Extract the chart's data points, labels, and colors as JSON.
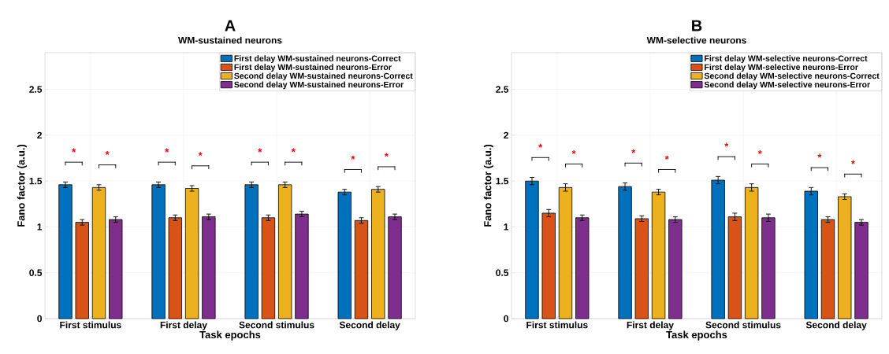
{
  "chart_data": [
    {
      "type": "bar",
      "title": "A",
      "subtitle": "WM-sustained neurons",
      "xlabel": "Task epochs",
      "ylabel": "Fano factor (a.u.)",
      "categories": [
        "First stimulus",
        "First delay",
        "Second stimulus",
        "Second delay"
      ],
      "series": [
        {
          "name": "First delay WM-sustained neurons-Correct",
          "color": "#0072bd",
          "values": [
            1.46,
            1.46,
            1.46,
            1.38
          ],
          "errors": [
            0.03,
            0.03,
            0.03,
            0.03
          ]
        },
        {
          "name": "First delay WM-sustained neurons-Error",
          "color": "#d95319",
          "values": [
            1.05,
            1.1,
            1.1,
            1.07
          ],
          "errors": [
            0.03,
            0.03,
            0.03,
            0.03
          ]
        },
        {
          "name": "Second delay WM-sustained neurons-Correct",
          "color": "#edb120",
          "values": [
            1.43,
            1.42,
            1.46,
            1.41
          ],
          "errors": [
            0.03,
            0.03,
            0.03,
            0.03
          ]
        },
        {
          "name": "Second delay WM-sustained neurons-Error",
          "color": "#7e2f8e",
          "values": [
            1.08,
            1.11,
            1.14,
            1.11
          ],
          "errors": [
            0.03,
            0.03,
            0.03,
            0.03
          ]
        }
      ],
      "ylim": [
        0,
        2.9
      ],
      "yticks": [
        0,
        0.5,
        1,
        1.5,
        2,
        2.5
      ],
      "grid": true,
      "legend": "top right",
      "annotations": [
        "*",
        "*",
        "*",
        "*",
        "*",
        "*",
        "*",
        "*"
      ]
    },
    {
      "type": "bar",
      "title": "B",
      "subtitle": "WM-selective neurons",
      "xlabel": "Task epochs",
      "ylabel": "Fano factor (a.u.)",
      "categories": [
        "First stimulus",
        "First delay",
        "Second stimulus",
        "Second delay"
      ],
      "series": [
        {
          "name": "First delay WM-selective neurons-Correct",
          "color": "#0072bd",
          "values": [
            1.5,
            1.44,
            1.51,
            1.39
          ],
          "errors": [
            0.04,
            0.04,
            0.04,
            0.04
          ]
        },
        {
          "name": "First delay WM-selective neurons-Error",
          "color": "#d95319",
          "values": [
            1.15,
            1.09,
            1.11,
            1.08
          ],
          "errors": [
            0.04,
            0.03,
            0.04,
            0.03
          ]
        },
        {
          "name": "Second delay WM-selective neurons-Correct",
          "color": "#edb120",
          "values": [
            1.43,
            1.38,
            1.43,
            1.33
          ],
          "errors": [
            0.04,
            0.03,
            0.04,
            0.03
          ]
        },
        {
          "name": "Second delay WM-selective neurons-Error",
          "color": "#7e2f8e",
          "values": [
            1.1,
            1.08,
            1.1,
            1.05
          ],
          "errors": [
            0.03,
            0.03,
            0.04,
            0.03
          ]
        }
      ],
      "ylim": [
        0,
        2.9
      ],
      "yticks": [
        0,
        0.5,
        1,
        1.5,
        2,
        2.5
      ],
      "grid": true,
      "legend": "top right",
      "annotations": [
        "*",
        "*",
        "*",
        "*",
        "*",
        "*",
        "*",
        "*"
      ]
    }
  ]
}
